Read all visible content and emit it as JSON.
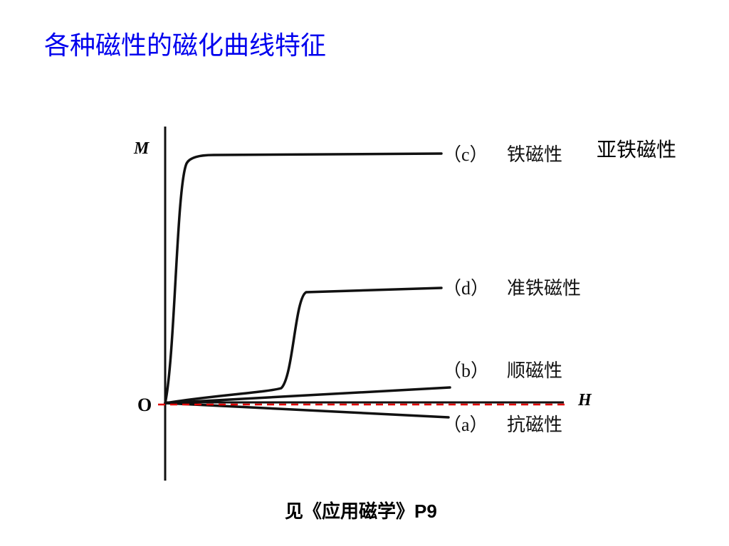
{
  "header": {
    "title": "各种磁性的磁化曲线特征"
  },
  "figure": {
    "axes": {
      "y": "M",
      "x": "H",
      "origin": "O"
    },
    "curves": [
      {
        "marker": "（c）",
        "name": "铁磁性"
      },
      {
        "marker": "（d）",
        "name": "准铁磁性"
      },
      {
        "marker": "（b）",
        "name": "顺磁性"
      },
      {
        "marker": "（a）",
        "name": "抗磁性"
      }
    ],
    "note": "亚铁磁性"
  },
  "caption": "见《应用磁学》P9"
}
